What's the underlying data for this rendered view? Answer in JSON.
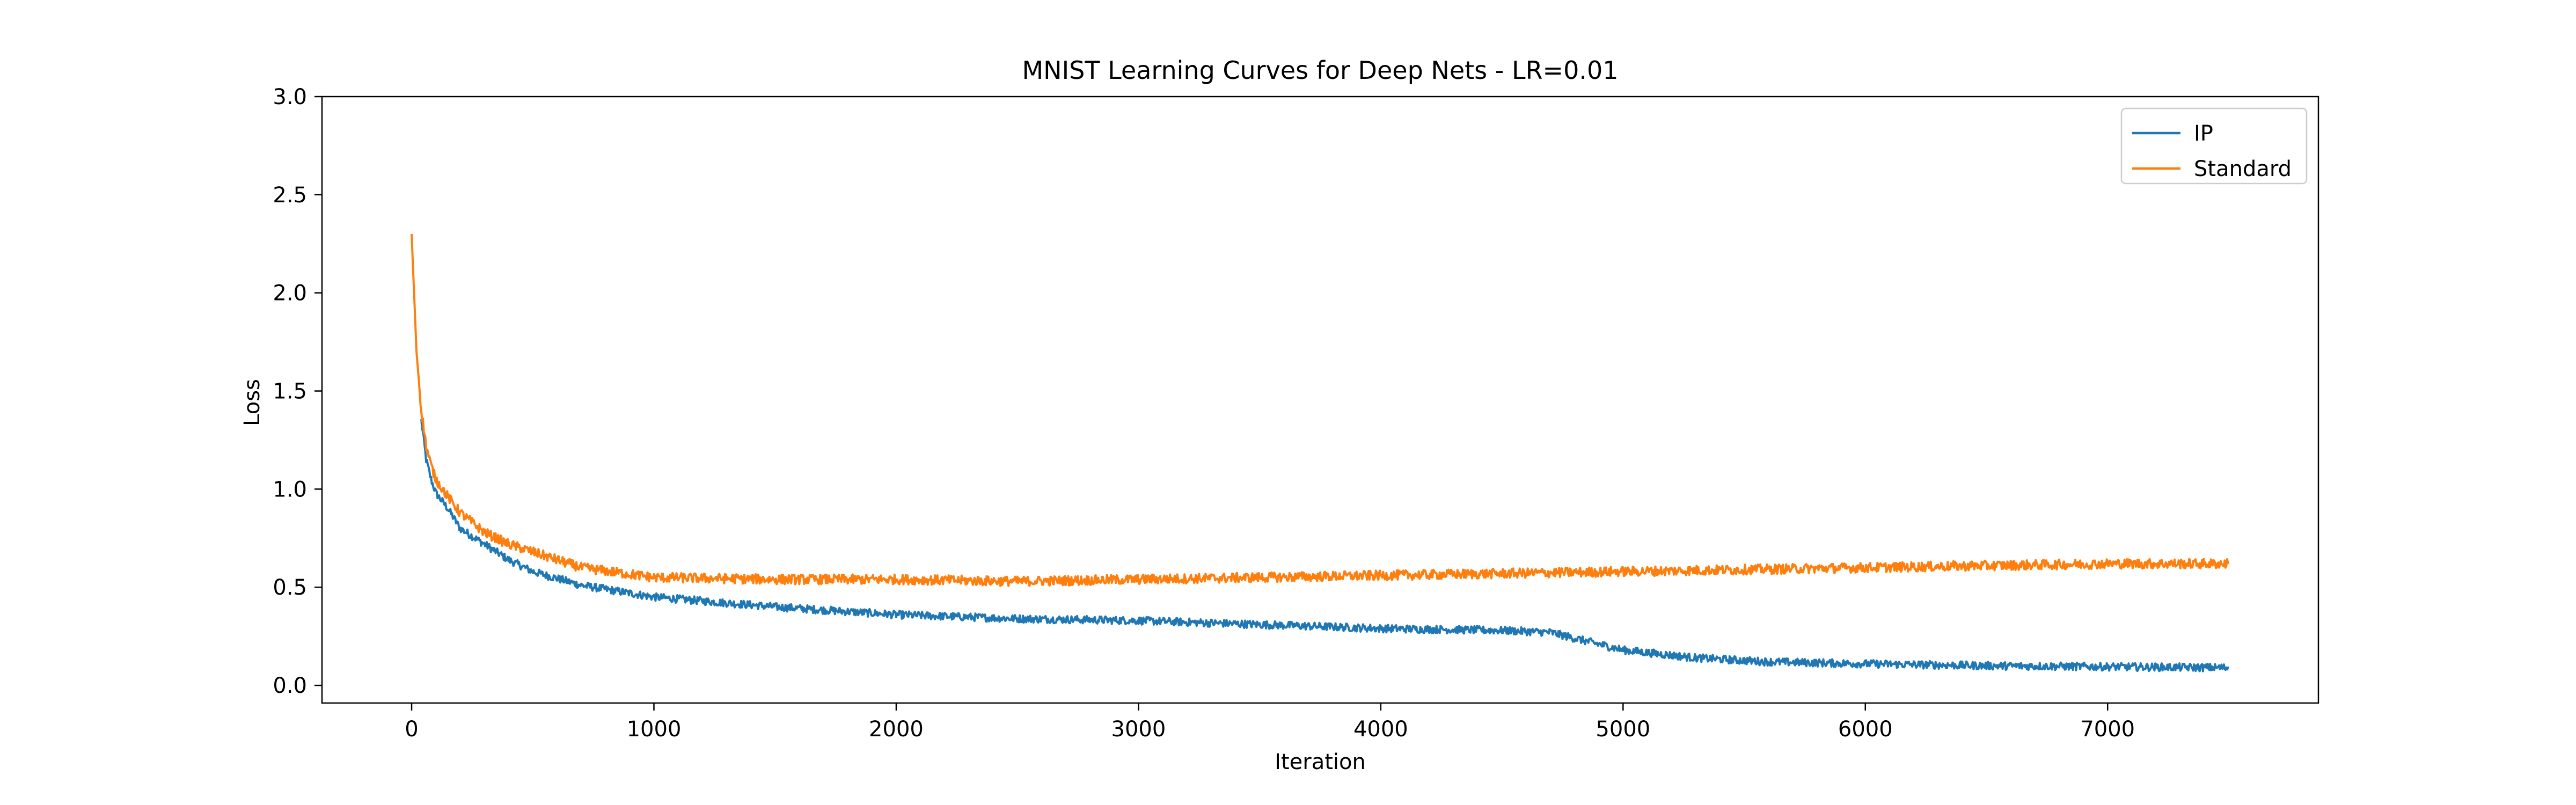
{
  "chart_data": {
    "type": "line",
    "title": "MNIST Learning Curves for Deep Nets - LR=0.01",
    "xlabel": "Iteration",
    "ylabel": "Loss",
    "xlim": [
      -370,
      7870
    ],
    "ylim": [
      -0.09,
      3.0
    ],
    "xticks": [
      0,
      1000,
      2000,
      3000,
      4000,
      5000,
      6000,
      7000
    ],
    "yticks": [
      0.0,
      0.5,
      1.0,
      1.5,
      2.0,
      2.5,
      3.0
    ],
    "xtick_labels": [
      "0",
      "1000",
      "2000",
      "3000",
      "4000",
      "5000",
      "6000",
      "7000"
    ],
    "ytick_labels": [
      "0.0",
      "0.5",
      "1.0",
      "1.5",
      "2.0",
      "2.5",
      "3.0"
    ],
    "grid": false,
    "legend_position": "top-right",
    "series": [
      {
        "name": "IP",
        "color": "#1f77b4",
        "noise": 0.02,
        "x": [
          40,
          50,
          60,
          80,
          100,
          150,
          200,
          300,
          400,
          500,
          700,
          1000,
          1500,
          2000,
          2500,
          3000,
          3500,
          4000,
          4500,
          4700,
          4800,
          5000,
          5300,
          5600,
          6000,
          6500,
          7000,
          7500
        ],
        "y": [
          1.35,
          1.25,
          1.15,
          1.05,
          0.98,
          0.9,
          0.8,
          0.72,
          0.64,
          0.58,
          0.51,
          0.45,
          0.4,
          0.36,
          0.34,
          0.33,
          0.31,
          0.29,
          0.28,
          0.27,
          0.24,
          0.18,
          0.14,
          0.12,
          0.11,
          0.1,
          0.095,
          0.09
        ]
      },
      {
        "name": "Standard",
        "color": "#ff7f0e",
        "noise": 0.025,
        "x": [
          0,
          10,
          20,
          40,
          60,
          80,
          100,
          150,
          200,
          300,
          400,
          500,
          700,
          1000,
          1500,
          2000,
          2500,
          3000,
          3500,
          4000,
          4500,
          5000,
          5500,
          6000,
          6500,
          7000,
          7500
        ],
        "y": [
          2.3,
          2.0,
          1.7,
          1.4,
          1.22,
          1.12,
          1.05,
          0.96,
          0.88,
          0.78,
          0.72,
          0.68,
          0.6,
          0.55,
          0.54,
          0.54,
          0.53,
          0.54,
          0.55,
          0.56,
          0.57,
          0.58,
          0.59,
          0.6,
          0.61,
          0.62,
          0.62
        ]
      }
    ]
  }
}
